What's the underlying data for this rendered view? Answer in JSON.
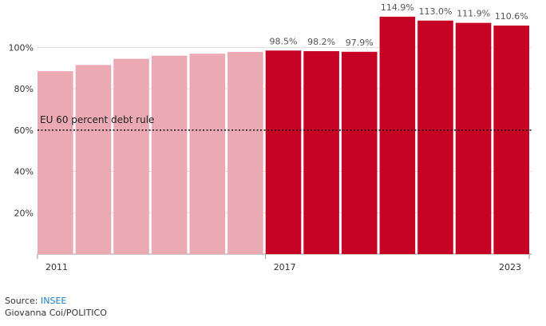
{
  "chart_data": {
    "type": "bar",
    "categories": [
      "2011",
      "2012",
      "2013",
      "2014",
      "2015",
      "2016",
      "2017",
      "2018",
      "2019",
      "2020",
      "2021",
      "2022",
      "2023"
    ],
    "values": [
      88.5,
      91.5,
      94.5,
      96.0,
      97.0,
      97.8,
      98.5,
      98.2,
      97.9,
      114.9,
      113.0,
      111.9,
      110.6
    ],
    "highlight_from": "2017",
    "shown_x_labels": [
      "2011",
      "2017",
      "2023"
    ],
    "value_labels": {
      "2017": "98.5%",
      "2018": "98.2%",
      "2019": "97.9%",
      "2020": "114.9%",
      "2021": "113.0%",
      "2022": "111.9%",
      "2023": "110.6%"
    },
    "y_ticks": [
      {
        "value": 20,
        "label": "20%"
      },
      {
        "value": 40,
        "label": "40%"
      },
      {
        "value": 60,
        "label": "60%"
      },
      {
        "value": 80,
        "label": "80%"
      },
      {
        "value": 100,
        "label": "100%"
      }
    ],
    "ylim": [
      0,
      116
    ],
    "reference_line": {
      "value": 60,
      "label": "EU 60 percent debt rule"
    },
    "grid": true,
    "colors": {
      "past": "#eba9b3",
      "highlight": "#c60325",
      "grid": "#dddddd",
      "reference": "#111111"
    }
  },
  "footer": {
    "source_prefix": "Source: ",
    "source_name": "INSEE",
    "credit": "Giovanna Coi/POLITICO"
  }
}
